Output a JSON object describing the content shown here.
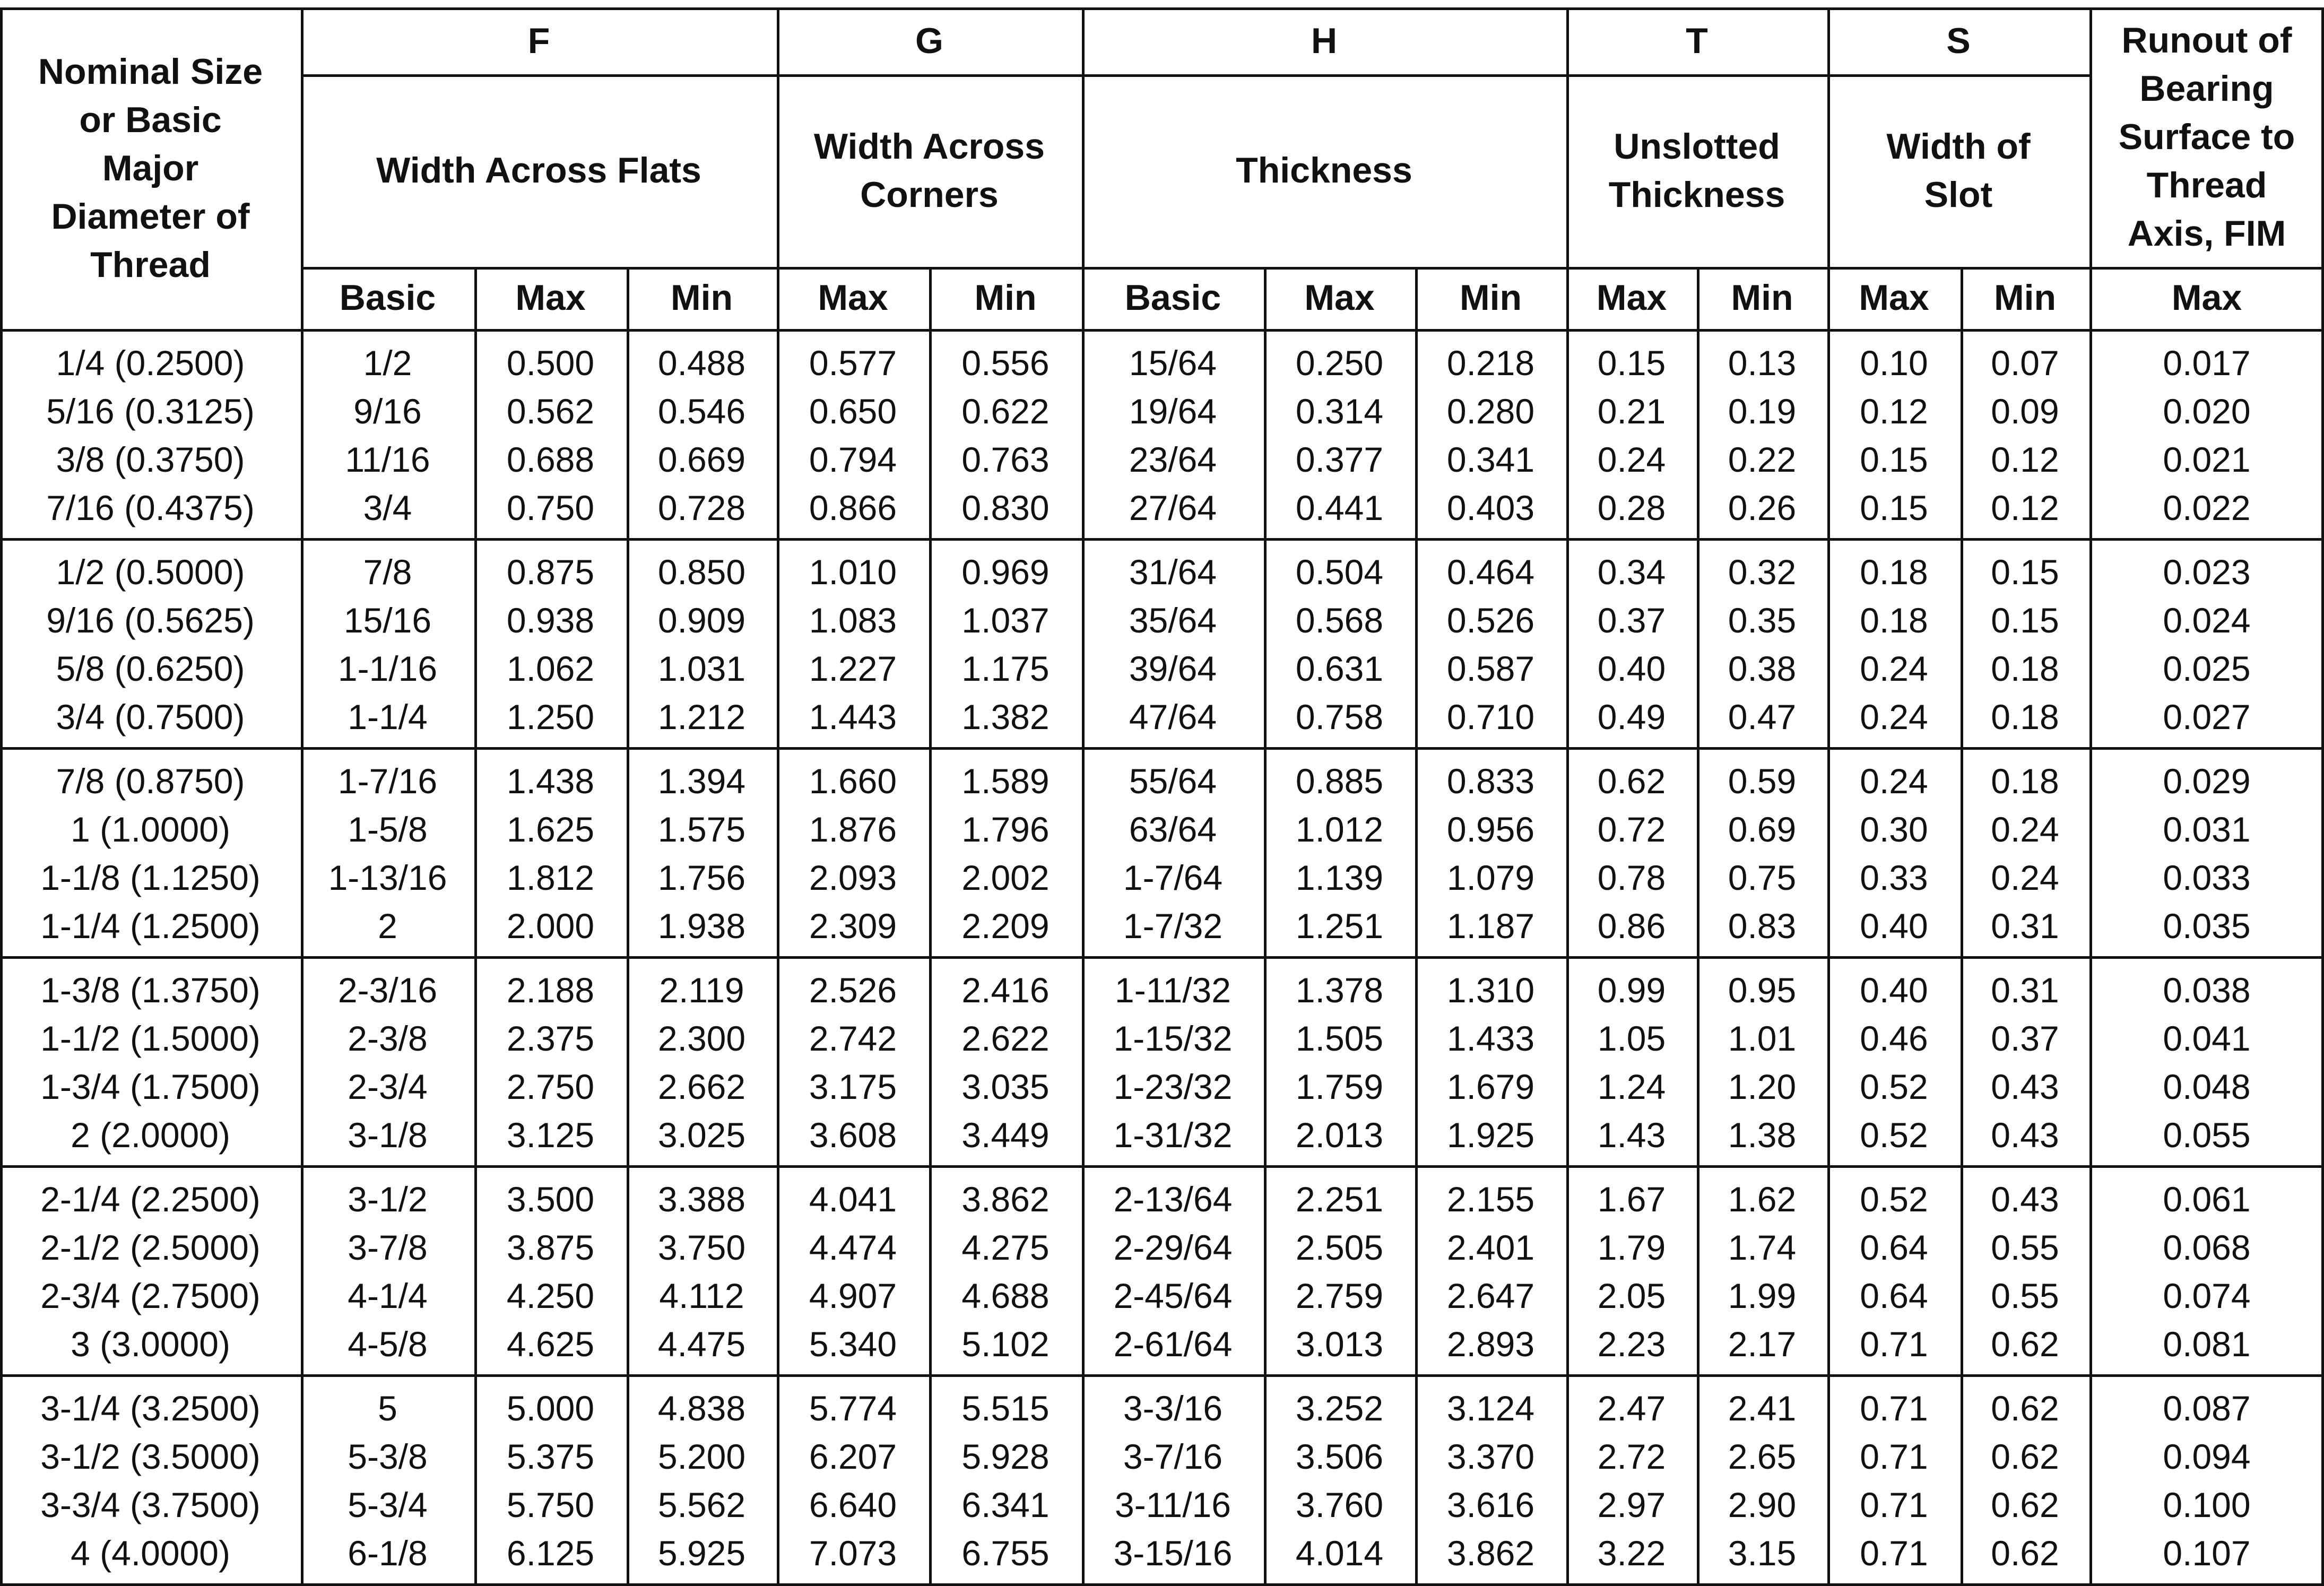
{
  "header": {
    "nominal": "Nominal Size or Basic Major Diameter of Thread",
    "groups": [
      {
        "letter": "F",
        "label": "Width Across Flats"
      },
      {
        "letter": "G",
        "label": "Width Across Corners"
      },
      {
        "letter": "H",
        "label": "Thickness"
      },
      {
        "letter": "T",
        "label": "Unslotted Thickness"
      },
      {
        "letter": "S",
        "label": "Width of Slot"
      }
    ],
    "runout": "Runout of Bearing Surface to Thread Axis, FIM",
    "subheaders": [
      "Basic",
      "Max",
      "Min",
      "Max",
      "Min",
      "Basic",
      "Max",
      "Min",
      "Max",
      "Min",
      "Max",
      "Min",
      "Max"
    ]
  },
  "rows": [
    [
      "1/4 (0.2500)",
      "1/2",
      "0.500",
      "0.488",
      "0.577",
      "0.556",
      "15/64",
      "0.250",
      "0.218",
      "0.15",
      "0.13",
      "0.10",
      "0.07",
      "0.017"
    ],
    [
      "5/16 (0.3125)",
      "9/16",
      "0.562",
      "0.546",
      "0.650",
      "0.622",
      "19/64",
      "0.314",
      "0.280",
      "0.21",
      "0.19",
      "0.12",
      "0.09",
      "0.020"
    ],
    [
      "3/8 (0.3750)",
      "11/16",
      "0.688",
      "0.669",
      "0.794",
      "0.763",
      "23/64",
      "0.377",
      "0.341",
      "0.24",
      "0.22",
      "0.15",
      "0.12",
      "0.021"
    ],
    [
      "7/16 (0.4375)",
      "3/4",
      "0.750",
      "0.728",
      "0.866",
      "0.830",
      "27/64",
      "0.441",
      "0.403",
      "0.28",
      "0.26",
      "0.15",
      "0.12",
      "0.022"
    ],
    [
      "1/2 (0.5000)",
      "7/8",
      "0.875",
      "0.850",
      "1.010",
      "0.969",
      "31/64",
      "0.504",
      "0.464",
      "0.34",
      "0.32",
      "0.18",
      "0.15",
      "0.023"
    ],
    [
      "9/16 (0.5625)",
      "15/16",
      "0.938",
      "0.909",
      "1.083",
      "1.037",
      "35/64",
      "0.568",
      "0.526",
      "0.37",
      "0.35",
      "0.18",
      "0.15",
      "0.024"
    ],
    [
      "5/8 (0.6250)",
      "1-1/16",
      "1.062",
      "1.031",
      "1.227",
      "1.175",
      "39/64",
      "0.631",
      "0.587",
      "0.40",
      "0.38",
      "0.24",
      "0.18",
      "0.025"
    ],
    [
      "3/4 (0.7500)",
      "1-1/4",
      "1.250",
      "1.212",
      "1.443",
      "1.382",
      "47/64",
      "0.758",
      "0.710",
      "0.49",
      "0.47",
      "0.24",
      "0.18",
      "0.027"
    ],
    [
      "7/8 (0.8750)",
      "1-7/16",
      "1.438",
      "1.394",
      "1.660",
      "1.589",
      "55/64",
      "0.885",
      "0.833",
      "0.62",
      "0.59",
      "0.24",
      "0.18",
      "0.029"
    ],
    [
      "1 (1.0000)",
      "1-5/8",
      "1.625",
      "1.575",
      "1.876",
      "1.796",
      "63/64",
      "1.012",
      "0.956",
      "0.72",
      "0.69",
      "0.30",
      "0.24",
      "0.031"
    ],
    [
      "1-1/8 (1.1250)",
      "1-13/16",
      "1.812",
      "1.756",
      "2.093",
      "2.002",
      "1-7/64",
      "1.139",
      "1.079",
      "0.78",
      "0.75",
      "0.33",
      "0.24",
      "0.033"
    ],
    [
      "1-1/4 (1.2500)",
      "2",
      "2.000",
      "1.938",
      "2.309",
      "2.209",
      "1-7/32",
      "1.251",
      "1.187",
      "0.86",
      "0.83",
      "0.40",
      "0.31",
      "0.035"
    ],
    [
      "1-3/8 (1.3750)",
      "2-3/16",
      "2.188",
      "2.119",
      "2.526",
      "2.416",
      "1-11/32",
      "1.378",
      "1.310",
      "0.99",
      "0.95",
      "0.40",
      "0.31",
      "0.038"
    ],
    [
      "1-1/2 (1.5000)",
      "2-3/8",
      "2.375",
      "2.300",
      "2.742",
      "2.622",
      "1-15/32",
      "1.505",
      "1.433",
      "1.05",
      "1.01",
      "0.46",
      "0.37",
      "0.041"
    ],
    [
      "1-3/4 (1.7500)",
      "2-3/4",
      "2.750",
      "2.662",
      "3.175",
      "3.035",
      "1-23/32",
      "1.759",
      "1.679",
      "1.24",
      "1.20",
      "0.52",
      "0.43",
      "0.048"
    ],
    [
      "2 (2.0000)",
      "3-1/8",
      "3.125",
      "3.025",
      "3.608",
      "3.449",
      "1-31/32",
      "2.013",
      "1.925",
      "1.43",
      "1.38",
      "0.52",
      "0.43",
      "0.055"
    ],
    [
      "2-1/4 (2.2500)",
      "3-1/2",
      "3.500",
      "3.388",
      "4.041",
      "3.862",
      "2-13/64",
      "2.251",
      "2.155",
      "1.67",
      "1.62",
      "0.52",
      "0.43",
      "0.061"
    ],
    [
      "2-1/2 (2.5000)",
      "3-7/8",
      "3.875",
      "3.750",
      "4.474",
      "4.275",
      "2-29/64",
      "2.505",
      "2.401",
      "1.79",
      "1.74",
      "0.64",
      "0.55",
      "0.068"
    ],
    [
      "2-3/4 (2.7500)",
      "4-1/4",
      "4.250",
      "4.112",
      "4.907",
      "4.688",
      "2-45/64",
      "2.759",
      "2.647",
      "2.05",
      "1.99",
      "0.64",
      "0.55",
      "0.074"
    ],
    [
      "3 (3.0000)",
      "4-5/8",
      "4.625",
      "4.475",
      "5.340",
      "5.102",
      "2-61/64",
      "3.013",
      "2.893",
      "2.23",
      "2.17",
      "0.71",
      "0.62",
      "0.081"
    ],
    [
      "3-1/4 (3.2500)",
      "5",
      "5.000",
      "4.838",
      "5.774",
      "5.515",
      "3-3/16",
      "3.252",
      "3.124",
      "2.47",
      "2.41",
      "0.71",
      "0.62",
      "0.087"
    ],
    [
      "3-1/2 (3.5000)",
      "5-3/8",
      "5.375",
      "5.200",
      "6.207",
      "5.928",
      "3-7/16",
      "3.506",
      "3.370",
      "2.72",
      "2.65",
      "0.71",
      "0.62",
      "0.094"
    ],
    [
      "3-3/4 (3.7500)",
      "5-3/4",
      "5.750",
      "5.562",
      "6.640",
      "6.341",
      "3-11/16",
      "3.760",
      "3.616",
      "2.97",
      "2.90",
      "0.71",
      "0.62",
      "0.100"
    ],
    [
      "4 (4.0000)",
      "6-1/8",
      "6.125",
      "5.925",
      "7.073",
      "6.755",
      "3-15/16",
      "4.014",
      "3.862",
      "3.22",
      "3.15",
      "0.71",
      "0.62",
      "0.107"
    ]
  ]
}
